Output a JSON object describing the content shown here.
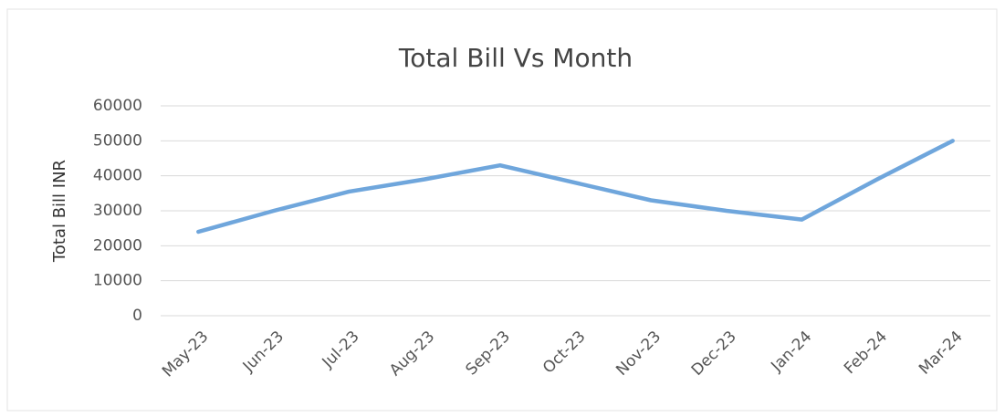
{
  "chart_data": {
    "type": "line",
    "title": "Total Bill Vs Month",
    "y_label": "Total Bill INR",
    "categories": [
      "May-23",
      "Jun-23",
      "Jul-23",
      "Aug-23",
      "Sep-23",
      "Oct-23",
      "Nov-23",
      "Dec-23",
      "Jan-24",
      "Feb-24",
      "Mar-24"
    ],
    "series": [
      {
        "name": "Total Bill",
        "color": "#6fa6dc",
        "values": [
          24000,
          30000,
          35500,
          39000,
          43000,
          38000,
          33000,
          30000,
          27500,
          39000,
          50000
        ]
      }
    ],
    "ylim": [
      0,
      60000
    ],
    "yticks": [
      0,
      10000,
      20000,
      30000,
      40000,
      50000,
      60000
    ],
    "grid": true
  }
}
